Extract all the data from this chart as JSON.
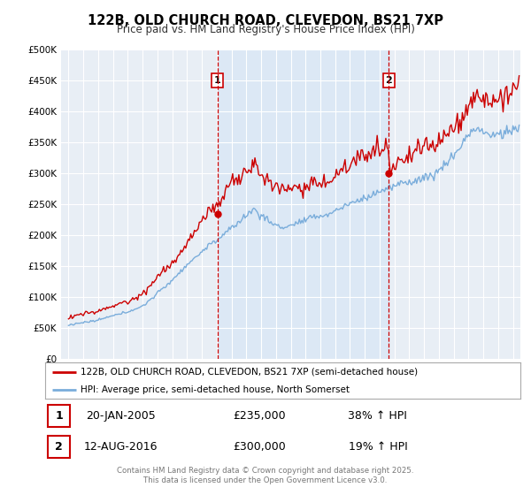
{
  "title": "122B, OLD CHURCH ROAD, CLEVEDON, BS21 7XP",
  "subtitle": "Price paid vs. HM Land Registry's House Price Index (HPI)",
  "ylim": [
    0,
    500000
  ],
  "yticks": [
    0,
    50000,
    100000,
    150000,
    200000,
    250000,
    300000,
    350000,
    400000,
    450000,
    500000
  ],
  "ytick_labels": [
    "£0",
    "£50K",
    "£100K",
    "£150K",
    "£200K",
    "£250K",
    "£300K",
    "£350K",
    "£400K",
    "£450K",
    "£500K"
  ],
  "background_color": "#ffffff",
  "plot_bg_color": "#e8eef5",
  "grid_color": "#ffffff",
  "sale1_date": 2005.054,
  "sale1_price": 235000,
  "sale2_date": 2016.617,
  "sale2_price": 300000,
  "sale1_line_color": "#cc0000",
  "sale2_line_color": "#cc0000",
  "property_line_color": "#cc0000",
  "hpi_line_color": "#7aaddb",
  "shade_color": "#dce8f5",
  "legend_property": "122B, OLD CHURCH ROAD, CLEVEDON, BS21 7XP (semi-detached house)",
  "legend_hpi": "HPI: Average price, semi-detached house, North Somerset",
  "table_row1_date": "20-JAN-2005",
  "table_row1_price": "£235,000",
  "table_row1_hpi": "38% ↑ HPI",
  "table_row2_date": "12-AUG-2016",
  "table_row2_price": "£300,000",
  "table_row2_hpi": "19% ↑ HPI",
  "footer": "Contains HM Land Registry data © Crown copyright and database right 2025.\nThis data is licensed under the Open Government Licence v3.0.",
  "xmin": 1994.5,
  "xmax": 2025.5
}
